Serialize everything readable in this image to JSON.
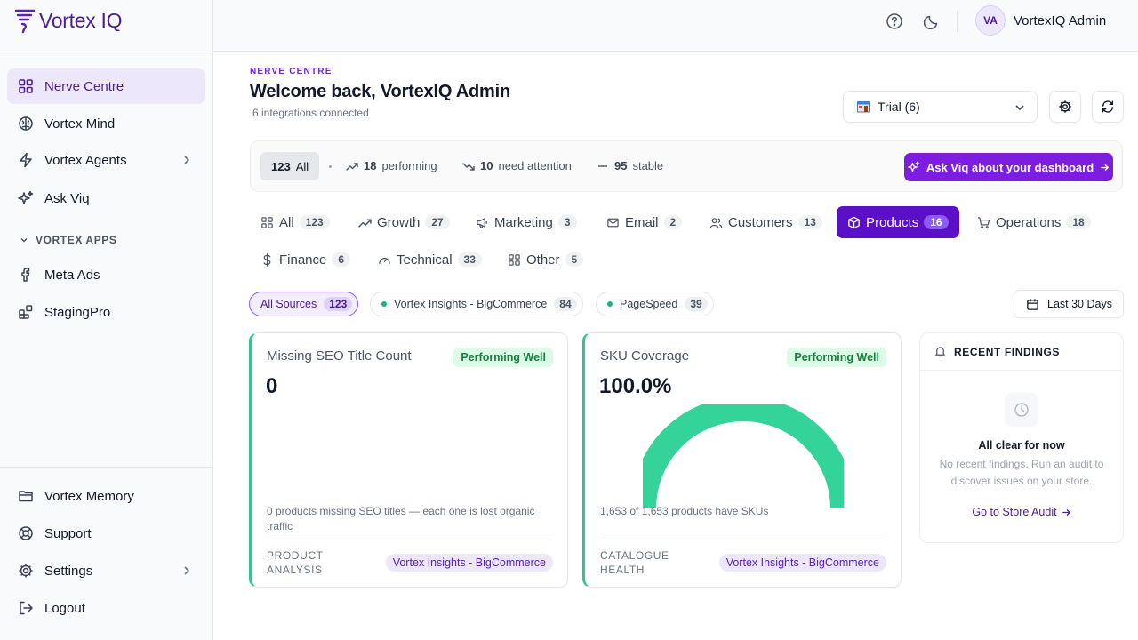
{
  "app": {
    "name": "Vortex IQ"
  },
  "sidebar": {
    "items": [
      {
        "label": "Nerve Centre",
        "icon": "grid-icon"
      },
      {
        "label": "Vortex Mind",
        "icon": "brain-icon"
      },
      {
        "label": "Vortex Agents",
        "icon": "lightning-icon"
      },
      {
        "label": "Ask Viq",
        "icon": "sparkles-icon"
      }
    ],
    "apps_section": "VORTEX APPS",
    "apps": [
      {
        "label": "Meta Ads",
        "icon": "facebook-icon"
      },
      {
        "label": "StagingPro",
        "icon": "blocks-icon"
      }
    ],
    "bottom": [
      {
        "label": "Vortex Memory",
        "icon": "folder-icon"
      },
      {
        "label": "Support",
        "icon": "lifebuoy-icon"
      },
      {
        "label": "Settings",
        "icon": "gear-icon"
      },
      {
        "label": "Logout",
        "icon": "logout-icon"
      }
    ]
  },
  "topbar": {
    "user_initials": "VA",
    "user_name": "VortexIQ Admin"
  },
  "header": {
    "eyebrow": "NERVE CENTRE",
    "title": "Welcome back, VortexIQ Admin",
    "subtitle": "6 integrations connected",
    "store_select": "Trial (6)"
  },
  "stats": {
    "all_count": "123",
    "all_label": "All",
    "performing_count": "18",
    "performing_label": "performing",
    "attention_count": "10",
    "attention_label": "need attention",
    "stable_count": "95",
    "stable_label": "stable",
    "ask_button": "Ask Viq about your dashboard"
  },
  "tabs": [
    {
      "label": "All",
      "count": "123"
    },
    {
      "label": "Growth",
      "count": "27"
    },
    {
      "label": "Marketing",
      "count": "3"
    },
    {
      "label": "Email",
      "count": "2"
    },
    {
      "label": "Customers",
      "count": "13"
    },
    {
      "label": "Products",
      "count": "16"
    },
    {
      "label": "Operations",
      "count": "18"
    },
    {
      "label": "Finance",
      "count": "6"
    },
    {
      "label": "Technical",
      "count": "33"
    },
    {
      "label": "Other",
      "count": "5"
    }
  ],
  "sources": [
    {
      "label": "All Sources",
      "count": "123"
    },
    {
      "label": "Vortex Insights - BigCommerce",
      "count": "84"
    },
    {
      "label": "PageSpeed",
      "count": "39"
    }
  ],
  "date_range": "Last 30 Days",
  "cards": [
    {
      "title": "Missing SEO Title Count",
      "badge": "Performing Well",
      "value": "0",
      "description": "0 products missing SEO titles — each one is lost organic traffic",
      "category_line1": "PRODUCT",
      "category_line2": "ANALYSIS",
      "source": "Vortex Insights - BigCommerce"
    },
    {
      "title": "SKU Coverage",
      "badge": "Performing Well",
      "value": "100.0%",
      "gauge_fraction": 1.0,
      "description": "1,653 of 1,653 products have SKUs",
      "category_line1": "CATALOGUE",
      "category_line2": "HEALTH",
      "source": "Vortex Insights - BigCommerce"
    }
  ],
  "findings": {
    "heading": "RECENT FINDINGS",
    "empty_title": "All clear for now",
    "empty_desc": "No recent findings. Run an audit to discover issues on your store.",
    "link": "Go to Store Audit"
  },
  "colors": {
    "brand": "#5b10c8",
    "accent_button": "#7c1de0",
    "success": "#2ec58e"
  }
}
